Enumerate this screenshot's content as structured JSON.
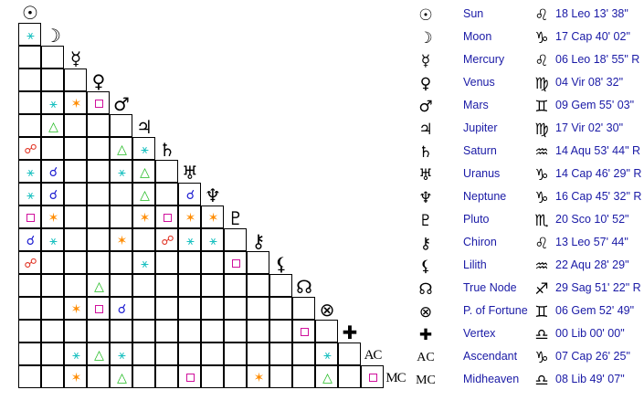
{
  "colors": {
    "trine": "#22bb22",
    "sextile": "#19c0c0",
    "square": "#d0109c",
    "opposition": "#e03020",
    "conjunction": "#1a1ad0",
    "quincunx": "#ff8c00",
    "text": "#1a1aa6"
  },
  "aspect_glyphs": {
    "tri": "△",
    "sex": "⚹",
    "sq": "□",
    "opp": "☍",
    "con": "☌",
    "qx": "✶"
  },
  "grid_symbols": [
    "☉",
    "☽",
    "☿",
    "♀",
    "♂",
    "♃",
    "♄",
    "♅",
    "♆",
    "♇",
    "⚷",
    "⚸",
    "☊",
    "⊗",
    "✚",
    "AC",
    "MC"
  ],
  "grid_symbol_names": [
    "sun-icon",
    "moon-icon",
    "mercury-icon",
    "venus-icon",
    "mars-icon",
    "jupiter-icon",
    "saturn-icon",
    "uranus-icon",
    "neptune-icon",
    "pluto-icon",
    "chiron-icon",
    "lilith-icon",
    "true-node-icon",
    "fortune-icon",
    "vertex-icon",
    "ascendant-label",
    "midheaven-label"
  ],
  "aspects": [
    {
      "r": 1,
      "c": 0,
      "t": "sex"
    },
    {
      "r": 4,
      "c": 1,
      "t": "sex"
    },
    {
      "r": 4,
      "c": 2,
      "t": "qx"
    },
    {
      "r": 4,
      "c": 3,
      "t": "sq"
    },
    {
      "r": 5,
      "c": 1,
      "t": "tri"
    },
    {
      "r": 6,
      "c": 0,
      "t": "opp"
    },
    {
      "r": 6,
      "c": 4,
      "t": "tri"
    },
    {
      "r": 6,
      "c": 5,
      "t": "sex"
    },
    {
      "r": 7,
      "c": 0,
      "t": "sex"
    },
    {
      "r": 7,
      "c": 1,
      "t": "con"
    },
    {
      "r": 7,
      "c": 4,
      "t": "sex"
    },
    {
      "r": 7,
      "c": 5,
      "t": "tri"
    },
    {
      "r": 8,
      "c": 0,
      "t": "sex"
    },
    {
      "r": 8,
      "c": 1,
      "t": "con"
    },
    {
      "r": 8,
      "c": 5,
      "t": "tri"
    },
    {
      "r": 8,
      "c": 7,
      "t": "con"
    },
    {
      "r": 9,
      "c": 0,
      "t": "sq"
    },
    {
      "r": 9,
      "c": 1,
      "t": "qx"
    },
    {
      "r": 9,
      "c": 5,
      "t": "qx"
    },
    {
      "r": 9,
      "c": 6,
      "t": "sq"
    },
    {
      "r": 9,
      "c": 7,
      "t": "qx"
    },
    {
      "r": 9,
      "c": 8,
      "t": "qx"
    },
    {
      "r": 10,
      "c": 0,
      "t": "con"
    },
    {
      "r": 10,
      "c": 1,
      "t": "sex"
    },
    {
      "r": 10,
      "c": 4,
      "t": "qx"
    },
    {
      "r": 10,
      "c": 6,
      "t": "opp"
    },
    {
      "r": 10,
      "c": 7,
      "t": "sex"
    },
    {
      "r": 10,
      "c": 8,
      "t": "sex"
    },
    {
      "r": 11,
      "c": 0,
      "t": "opp"
    },
    {
      "r": 11,
      "c": 5,
      "t": "sex"
    },
    {
      "r": 11,
      "c": 9,
      "t": "sq"
    },
    {
      "r": 12,
      "c": 3,
      "t": "tri"
    },
    {
      "r": 13,
      "c": 2,
      "t": "qx"
    },
    {
      "r": 13,
      "c": 3,
      "t": "sq"
    },
    {
      "r": 13,
      "c": 4,
      "t": "con"
    },
    {
      "r": 14,
      "c": 12,
      "t": "sq"
    },
    {
      "r": 15,
      "c": 2,
      "t": "sex"
    },
    {
      "r": 15,
      "c": 3,
      "t": "tri"
    },
    {
      "r": 15,
      "c": 4,
      "t": "sex"
    },
    {
      "r": 15,
      "c": 13,
      "t": "sex"
    },
    {
      "r": 16,
      "c": 2,
      "t": "qx"
    },
    {
      "r": 16,
      "c": 4,
      "t": "tri"
    },
    {
      "r": 16,
      "c": 7,
      "t": "sq"
    },
    {
      "r": 16,
      "c": 10,
      "t": "qx"
    },
    {
      "r": 16,
      "c": 13,
      "t": "tri"
    },
    {
      "r": 16,
      "c": 15,
      "t": "sq"
    }
  ],
  "planets": [
    {
      "symbol": "☉",
      "icon": "sun-icon",
      "name": "Sun",
      "sign": "♌",
      "sign_icon": "leo-icon",
      "position": "18 Leo 13' 38\""
    },
    {
      "symbol": "☽",
      "icon": "moon-icon",
      "name": "Moon",
      "sign": "♑",
      "sign_icon": "capricorn-icon",
      "position": "17 Cap 40' 02\""
    },
    {
      "symbol": "☿",
      "icon": "mercury-icon",
      "name": "Mercury",
      "sign": "♌",
      "sign_icon": "leo-icon",
      "position": "06 Leo 18' 55\" R"
    },
    {
      "symbol": "♀",
      "icon": "venus-icon",
      "name": "Venus",
      "sign": "♍",
      "sign_icon": "virgo-icon",
      "position": "04 Vir 08' 32\""
    },
    {
      "symbol": "♂",
      "icon": "mars-icon",
      "name": "Mars",
      "sign": "♊",
      "sign_icon": "gemini-icon",
      "position": "09 Gem 55' 03\""
    },
    {
      "symbol": "♃",
      "icon": "jupiter-icon",
      "name": "Jupiter",
      "sign": "♍",
      "sign_icon": "virgo-icon",
      "position": "17 Vir 02' 30\""
    },
    {
      "symbol": "♄",
      "icon": "saturn-icon",
      "name": "Saturn",
      "sign": "♒",
      "sign_icon": "aquarius-icon",
      "position": "14 Aqu 53' 44\" R"
    },
    {
      "symbol": "♅",
      "icon": "uranus-icon",
      "name": "Uranus",
      "sign": "♑",
      "sign_icon": "capricorn-icon",
      "position": "14 Cap 46' 29\" R"
    },
    {
      "symbol": "♆",
      "icon": "neptune-icon",
      "name": "Neptune",
      "sign": "♑",
      "sign_icon": "capricorn-icon",
      "position": "16 Cap 45' 32\" R"
    },
    {
      "symbol": "♇",
      "icon": "pluto-icon",
      "name": "Pluto",
      "sign": "♏",
      "sign_icon": "scorpio-icon",
      "position": "20 Sco 10' 52\""
    },
    {
      "symbol": "⚷",
      "icon": "chiron-icon",
      "name": "Chiron",
      "sign": "♌",
      "sign_icon": "leo-icon",
      "position": "13 Leo 57' 44\""
    },
    {
      "symbol": "⚸",
      "icon": "lilith-icon",
      "name": "Lilith",
      "sign": "♒",
      "sign_icon": "aquarius-icon",
      "position": "22 Aqu 28' 29\""
    },
    {
      "symbol": "☊",
      "icon": "true-node-icon",
      "name": "True Node",
      "sign": "♐",
      "sign_icon": "sagittarius-icon",
      "position": "29 Sag 51' 22\" R"
    },
    {
      "symbol": "⊗",
      "icon": "fortune-icon",
      "name": "P. of Fortune",
      "sign": "♊",
      "sign_icon": "gemini-icon",
      "position": "06 Gem 52' 49\""
    },
    {
      "symbol": "✚",
      "icon": "vertex-icon",
      "name": "Vertex",
      "sign": "♎",
      "sign_icon": "libra-icon",
      "position": "00 Lib 00' 00\""
    },
    {
      "symbol": "AC",
      "icon": "ascendant-label",
      "name": "Ascendant",
      "sign": "♑",
      "sign_icon": "capricorn-icon",
      "position": "07 Cap 26' 25\""
    },
    {
      "symbol": "MC",
      "icon": "midheaven-label",
      "name": "Midheaven",
      "sign": "♎",
      "sign_icon": "libra-icon",
      "position": "08 Lib 49' 07\""
    }
  ]
}
